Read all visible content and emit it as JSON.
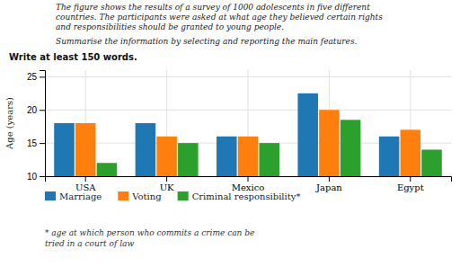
{
  "chart_data": {
    "type": "bar",
    "title": [
      "The figure shows the results of a survey of 1000 adolescents in five different",
      "countries. The participants were asked at what age they believed certain rights",
      "and responsibilities should be granted to young people."
    ],
    "subtitle": "Summarise the information by selecting and reporting the main features.",
    "annotations": [
      "Write at least 150 words.",
      "* age at which person who commits a crime can be",
      "tried in a court of law"
    ],
    "ylabel": "Age (years)",
    "categories": [
      "USA",
      "UK",
      "Mexico",
      "Japan",
      "Egypt"
    ],
    "series": [
      {
        "name": "Marriage",
        "values": [
          18,
          18,
          16,
          22.5,
          16
        ]
      },
      {
        "name": "Voting",
        "values": [
          18,
          16,
          16,
          20,
          17
        ]
      },
      {
        "name": "Criminal responsibility*",
        "values": [
          12,
          15,
          15,
          18.5,
          14
        ]
      }
    ],
    "ylim": [
      10,
      26
    ],
    "yticks": [
      10,
      15,
      20,
      25
    ],
    "grid": true,
    "legend": "bottom"
  }
}
